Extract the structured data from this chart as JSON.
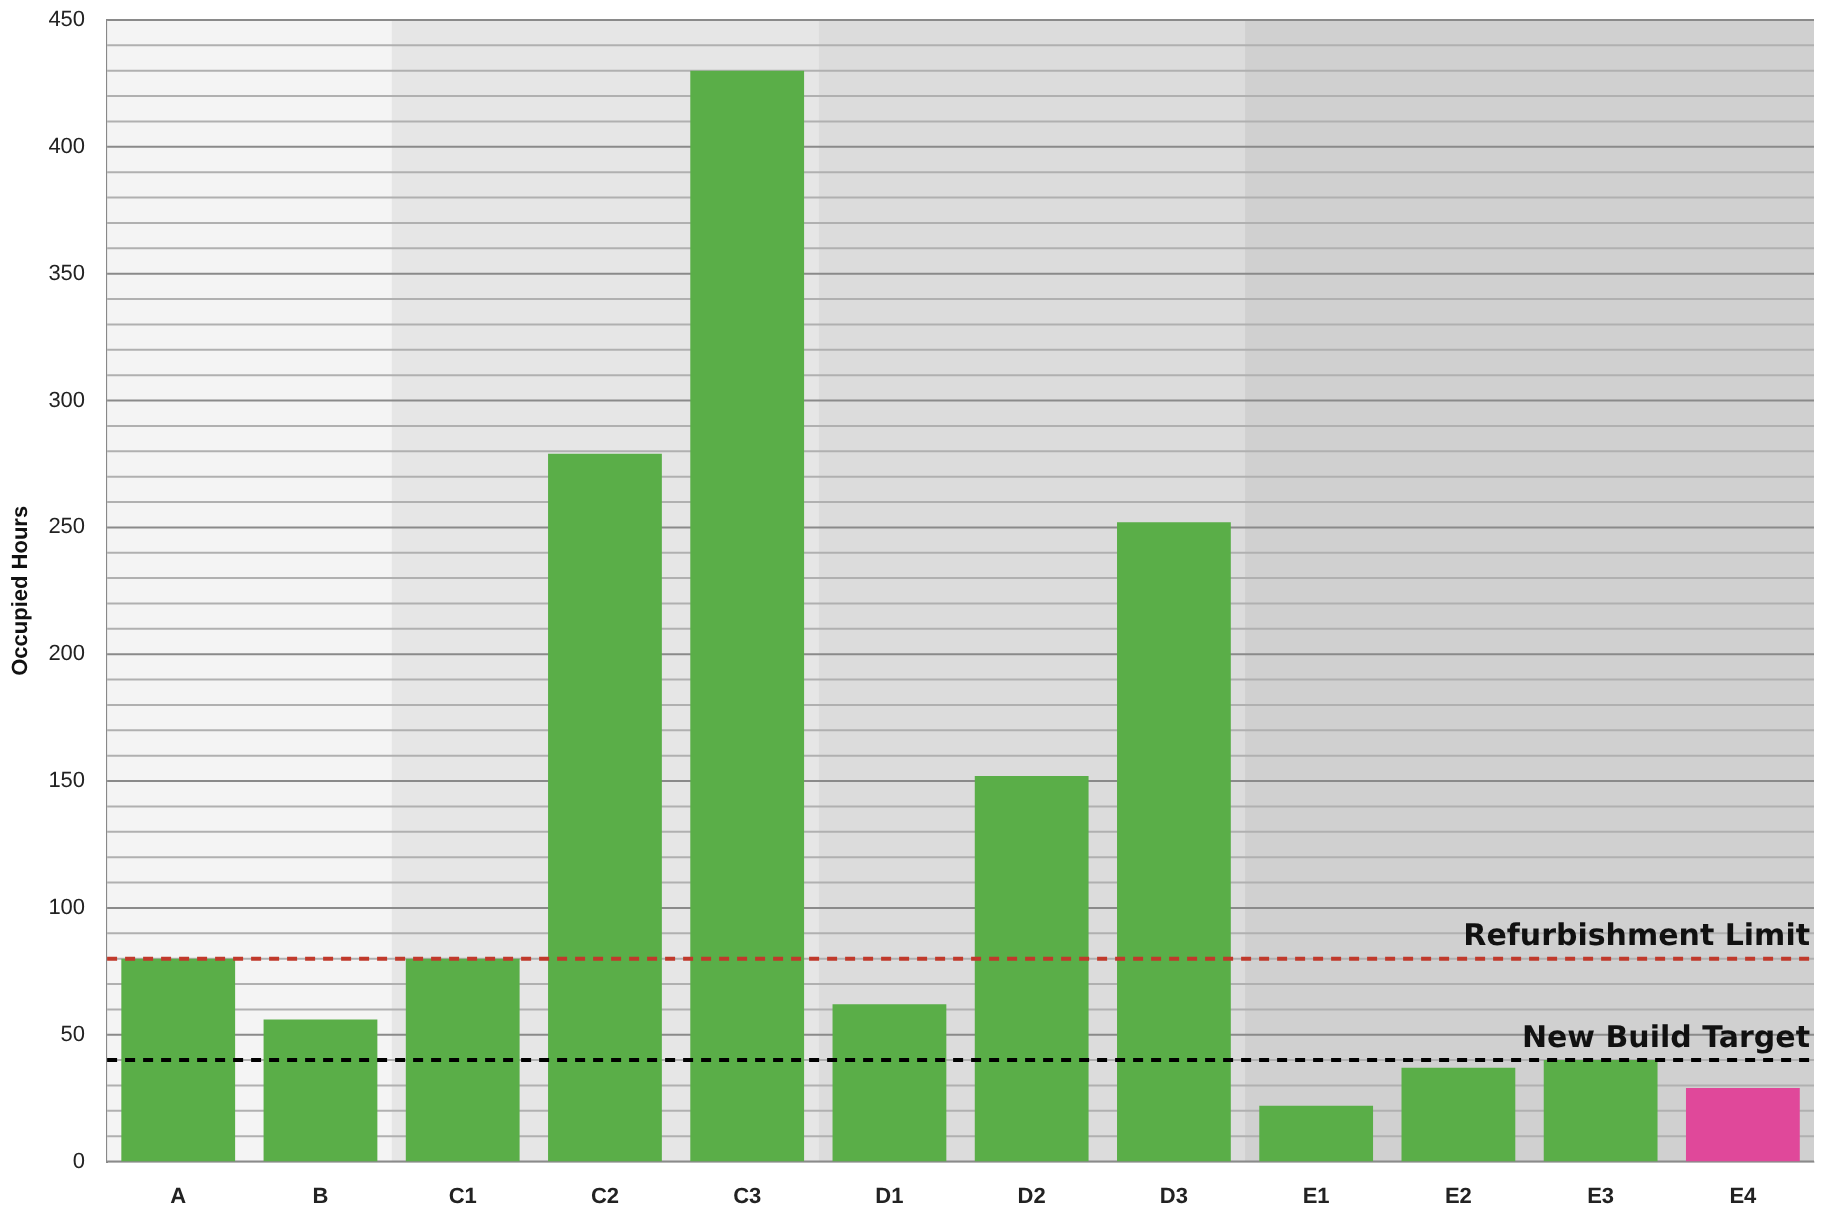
{
  "chart_data": {
    "type": "bar",
    "ylabel": "Occupied Hours",
    "categories": [
      "A",
      "B",
      "C1",
      "C2",
      "C3",
      "D1",
      "D2",
      "D3",
      "E1",
      "E2",
      "E3",
      "E4"
    ],
    "values": [
      80,
      56,
      80,
      279,
      430,
      62,
      152,
      252,
      22,
      37,
      40,
      29
    ],
    "colors": [
      "#5aae48",
      "#5aae48",
      "#5aae48",
      "#5aae48",
      "#5aae48",
      "#5aae48",
      "#5aae48",
      "#5aae48",
      "#5aae48",
      "#5aae48",
      "#5aae48",
      "#e0489a"
    ],
    "ylim": [
      0,
      450
    ],
    "yticks": [
      0,
      {
        "value": 10,
        "label": null
      },
      {
        "value": 20,
        "label": null
      },
      {
        "value": 30,
        "label": null
      },
      {
        "value": 40,
        "label": null
      },
      50,
      {
        "value": 60,
        "label": null
      },
      {
        "value": 70,
        "label": null
      },
      {
        "value": 80,
        "label": null
      },
      {
        "value": 90,
        "label": null
      },
      100,
      {
        "value": 110,
        "label": null
      },
      {
        "value": 120,
        "label": null
      },
      {
        "value": 130,
        "label": null
      },
      {
        "value": 140,
        "label": null
      },
      150,
      {
        "value": 160,
        "label": null
      },
      {
        "value": 170,
        "label": null
      },
      {
        "value": 180,
        "label": null
      },
      {
        "value": 190,
        "label": null
      },
      200,
      {
        "value": 210,
        "label": null
      },
      {
        "value": 220,
        "label": null
      },
      {
        "value": 230,
        "label": null
      },
      {
        "value": 240,
        "label": null
      },
      250,
      {
        "value": 260,
        "label": null
      },
      {
        "value": 270,
        "label": null
      },
      {
        "value": 280,
        "label": null
      },
      {
        "value": 290,
        "label": null
      },
      300,
      {
        "value": 310,
        "label": null
      },
      {
        "value": 320,
        "label": null
      },
      {
        "value": 330,
        "label": null
      },
      {
        "value": 340,
        "label": null
      },
      350,
      {
        "value": 360,
        "label": null
      },
      {
        "value": 370,
        "label": null
      },
      {
        "value": 380,
        "label": null
      },
      {
        "value": 390,
        "label": null
      },
      400,
      {
        "value": 410,
        "label": null
      },
      {
        "value": 420,
        "label": null
      },
      {
        "value": 430,
        "label": null
      },
      {
        "value": 440,
        "label": null
      },
      450
    ],
    "grid": "y",
    "bands": [
      {
        "axis": "x",
        "from": "A",
        "to": "B",
        "color": "#f4f4f4"
      },
      {
        "axis": "x",
        "from": "C1",
        "to": "C3",
        "color": "#e6e6e6"
      },
      {
        "axis": "x",
        "from": "D1",
        "to": "D3",
        "color": "#dcdcdc"
      },
      {
        "axis": "x",
        "from": "E1",
        "to": "E4",
        "color": "#d0d0d0"
      }
    ],
    "ref_lines": [
      {
        "axis": "y",
        "value": 80,
        "label": "Refurbishment Limit",
        "color": "#c0392b",
        "line_style": "dashed"
      },
      {
        "axis": "y",
        "value": 40,
        "label": "New Build Target",
        "color": "#000000",
        "line_style": "dashed"
      }
    ]
  }
}
